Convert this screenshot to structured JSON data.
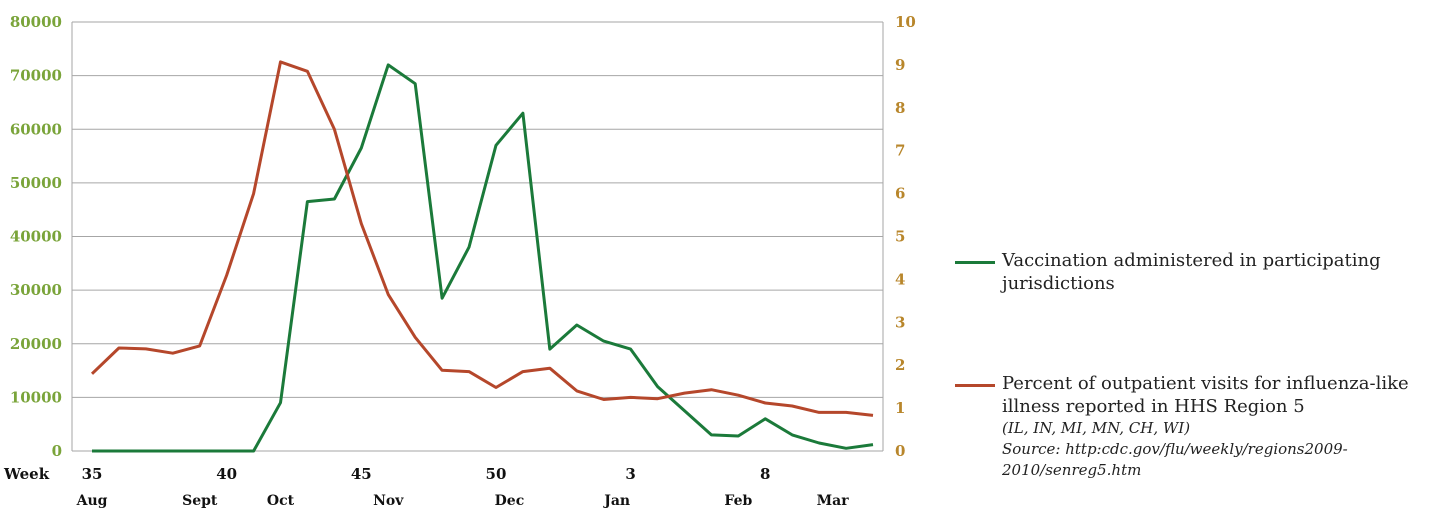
{
  "colors": {
    "vaccination": "#1b7a3a",
    "ili": "#b5472b",
    "left_axis": "#7aa43a",
    "right_axis": "#b8862b",
    "grid": "#a6a6a6"
  },
  "legend": {
    "vaccination_label": "Vaccination administered in participating jurisdictions",
    "ili_label": "Percent of outpatient visits for influenza-like illness reported in HHS Region 5",
    "states_note": "(IL, IN, MI, MN, CH, WI)",
    "source_note": "Source: http:cdc.gov/flu/weekly/regions2009-2010/senreg5.htm"
  },
  "chart_data": {
    "type": "line",
    "x_axis_prefix": "Week",
    "x": [
      "35",
      "36",
      "37",
      "38",
      "39",
      "40",
      "41",
      "42",
      "43",
      "44",
      "45",
      "46",
      "47",
      "48",
      "49",
      "50",
      "51",
      "52",
      "1",
      "2",
      "3",
      "4",
      "5",
      "6",
      "7",
      "8",
      "9",
      "10",
      "11",
      "12"
    ],
    "week_labels": [
      {
        "index": 0,
        "label": "35"
      },
      {
        "index": 5,
        "label": "40"
      },
      {
        "index": 10,
        "label": "45"
      },
      {
        "index": 15,
        "label": "50"
      },
      {
        "index": 20,
        "label": "3"
      },
      {
        "index": 25,
        "label": "8"
      }
    ],
    "month_labels": [
      {
        "index": 0,
        "label": "Aug"
      },
      {
        "index": 4,
        "label": "Sept"
      },
      {
        "index": 7,
        "label": "Oct"
      },
      {
        "index": 11,
        "label": "Nov"
      },
      {
        "index": 15.5,
        "label": "Dec"
      },
      {
        "index": 19.5,
        "label": "Jan"
      },
      {
        "index": 24,
        "label": "Feb"
      },
      {
        "index": 27.5,
        "label": "Mar"
      }
    ],
    "y_left": {
      "min": 0,
      "max": 80000,
      "step": 10000,
      "ticks": [
        "0",
        "10000",
        "20000",
        "30000",
        "40000",
        "50000",
        "60000",
        "70000",
        "80000"
      ]
    },
    "y_right": {
      "min": 0,
      "max": 10,
      "step": 1,
      "ticks": [
        "0",
        "1",
        "2",
        "3",
        "4",
        "5",
        "6",
        "7",
        "8",
        "9",
        "10"
      ]
    },
    "grid": true,
    "legend_position": "right",
    "series": [
      {
        "name": "Vaccination administered in participating jurisdictions",
        "axis": "left",
        "values": [
          0,
          0,
          0,
          0,
          0,
          0,
          0,
          9000,
          46500,
          47000,
          56500,
          72000,
          68500,
          28500,
          38000,
          57000,
          63000,
          19000,
          23500,
          20500,
          19000,
          12000,
          7500,
          3000,
          2800,
          6000,
          3000,
          1500,
          500,
          1200
        ]
      },
      {
        "name": "Percent of outpatient visits for influenza-like illness reported in HHS Region 5",
        "axis": "right",
        "values": [
          1.8,
          2.4,
          2.38,
          2.28,
          2.45,
          4.1,
          6.0,
          9.07,
          8.85,
          7.5,
          5.3,
          3.65,
          2.65,
          1.88,
          1.85,
          1.48,
          1.85,
          1.93,
          1.4,
          1.2,
          1.25,
          1.22,
          1.35,
          1.43,
          1.3,
          1.12,
          1.05,
          0.9,
          0.9,
          0.83
        ]
      }
    ]
  }
}
